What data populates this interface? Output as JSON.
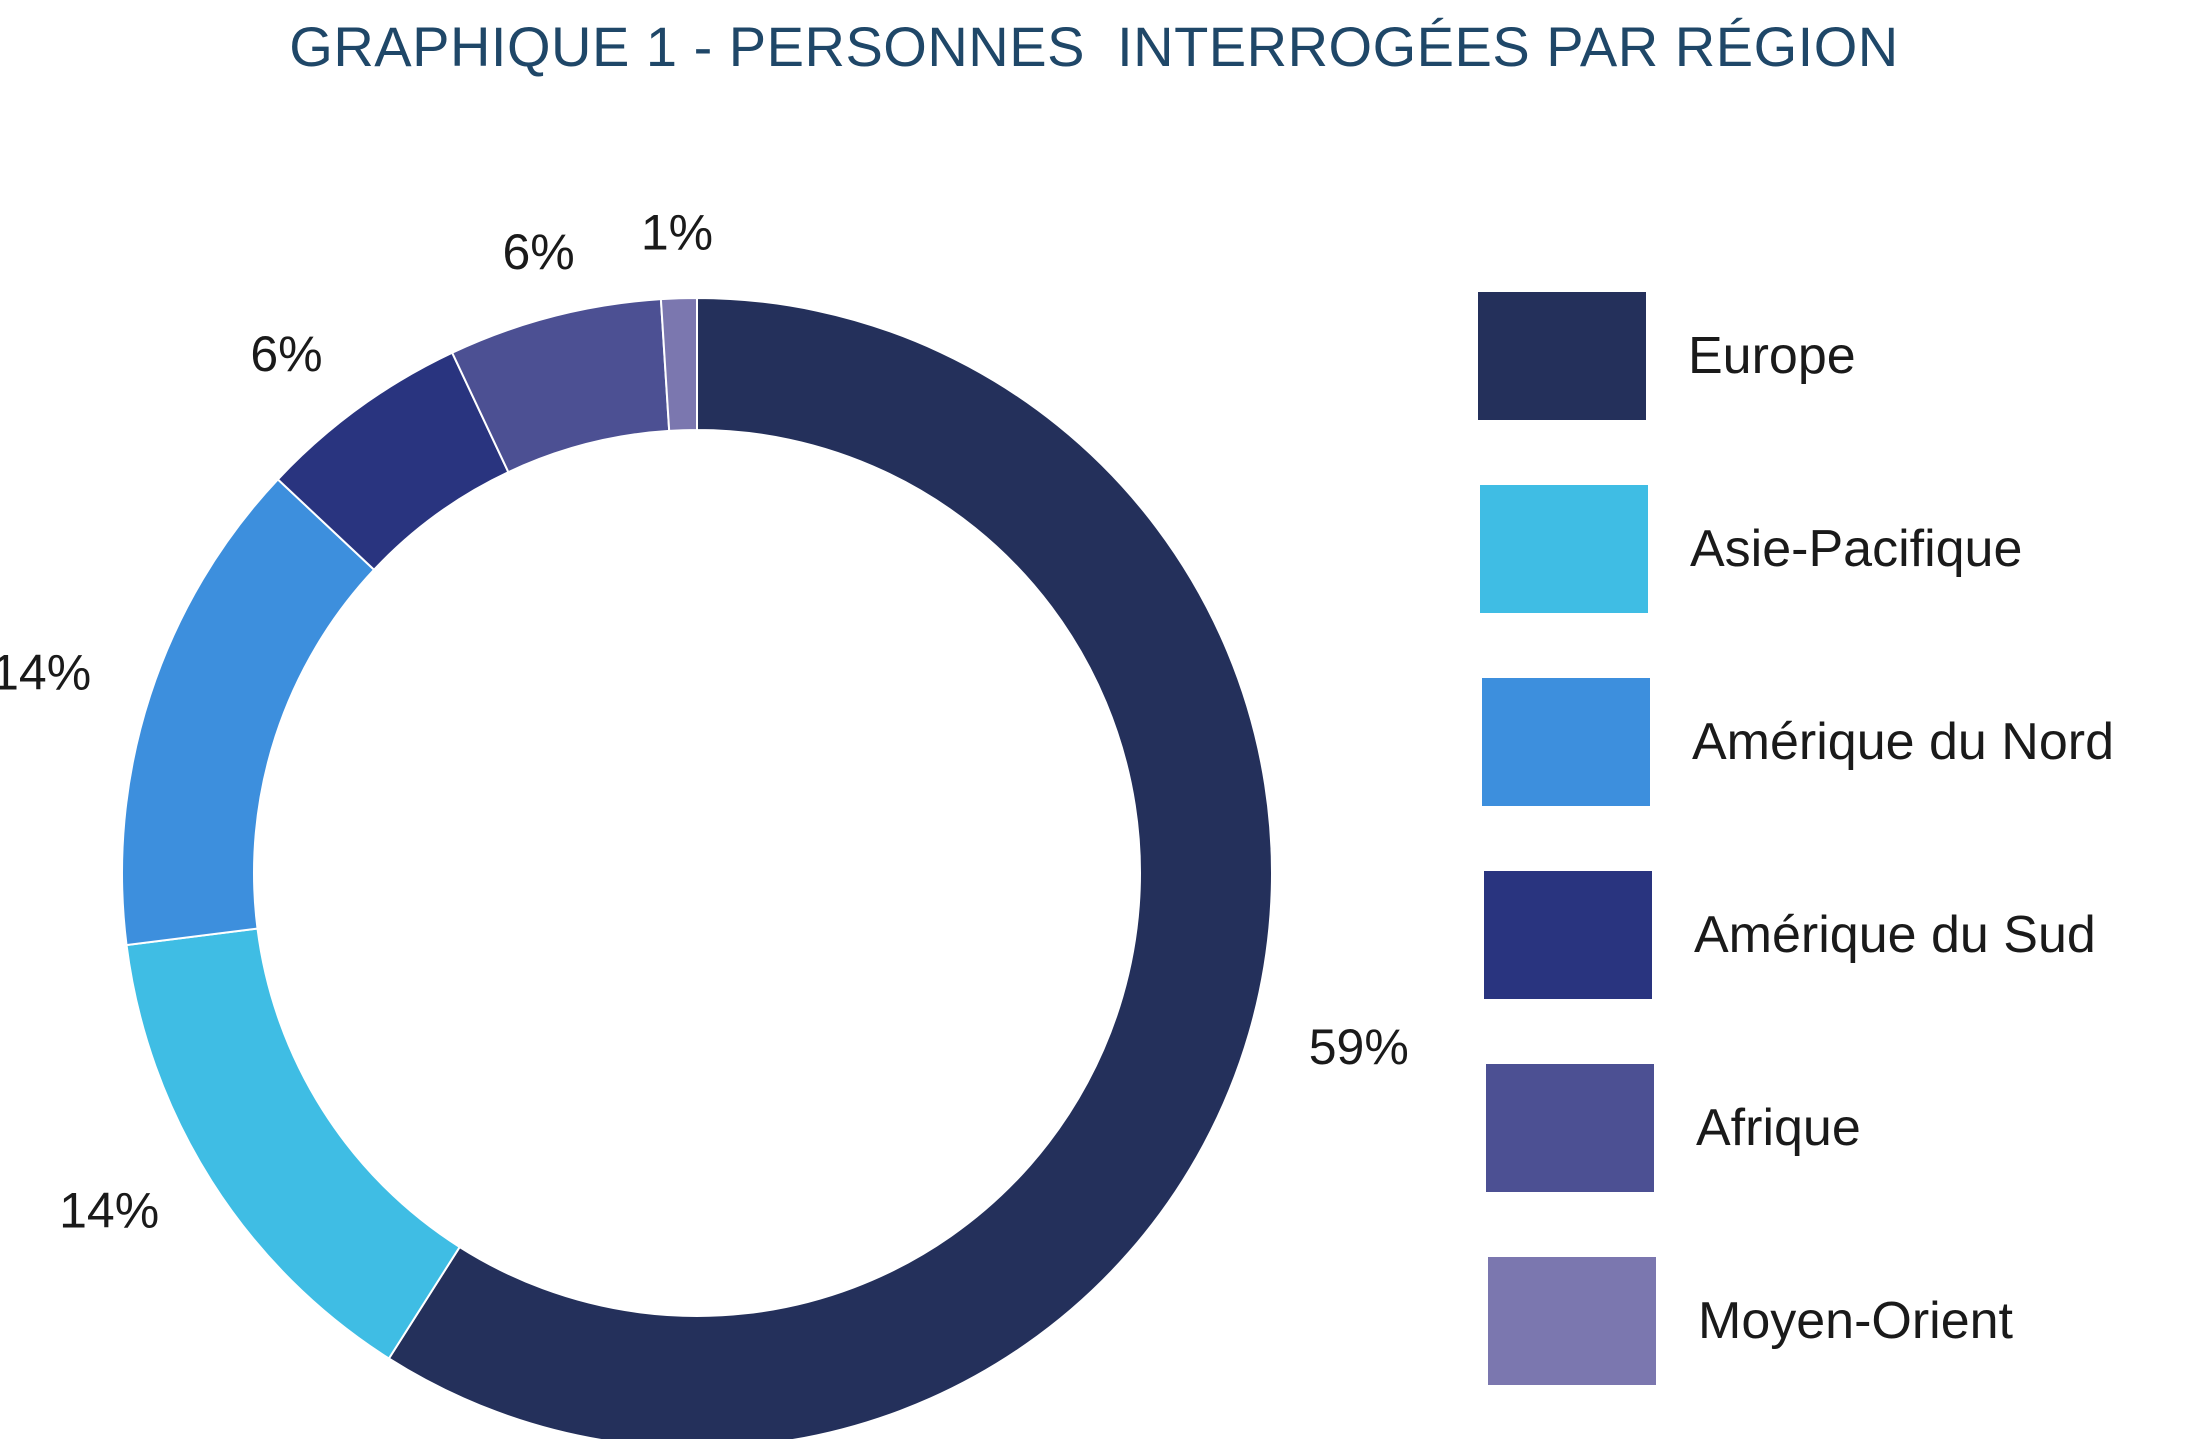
{
  "title": "GRAPHIQUE 1 - PERSONNES  INTERROGÉES PAR RÉGION",
  "chart_data": {
    "type": "pie",
    "variant": "donut",
    "title": "GRAPHIQUE 1 - PERSONNES  INTERROGÉES PAR RÉGION",
    "categories": [
      "Europe",
      "Asie-Pacifique",
      "Amérique du Nord",
      "Amérique du Sud",
      "Afrique",
      "Moyen-Orient"
    ],
    "values": [
      59,
      14,
      14,
      6,
      6,
      1
    ],
    "value_labels": [
      "59%",
      "14%",
      "14%",
      "6%",
      "6%",
      "1%"
    ],
    "colors": [
      "#24305b",
      "#3fbde4",
      "#3d8fdd",
      "#29347f",
      "#4c5093",
      "#7b77af"
    ],
    "start": "top",
    "direction": "clockwise",
    "legend_position": "right"
  }
}
